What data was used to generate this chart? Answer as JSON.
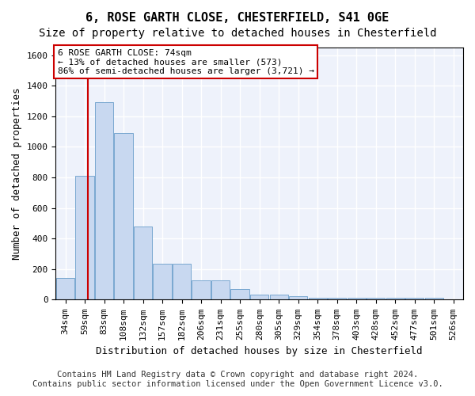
{
  "title_line1": "6, ROSE GARTH CLOSE, CHESTERFIELD, S41 0GE",
  "title_line2": "Size of property relative to detached houses in Chesterfield",
  "xlabel": "Distribution of detached houses by size in Chesterfield",
  "ylabel": "Number of detached properties",
  "bin_labels": [
    "34sqm",
    "59sqm",
    "83sqm",
    "108sqm",
    "132sqm",
    "157sqm",
    "182sqm",
    "206sqm",
    "231sqm",
    "255sqm",
    "280sqm",
    "305sqm",
    "329sqm",
    "354sqm",
    "378sqm",
    "403sqm",
    "428sqm",
    "452sqm",
    "477sqm",
    "501sqm",
    "526sqm"
  ],
  "bar_heights": [
    140,
    810,
    1290,
    1090,
    480,
    235,
    235,
    125,
    125,
    70,
    35,
    35,
    25,
    15,
    15,
    15,
    15,
    15,
    15,
    15,
    0
  ],
  "bar_color": "#c8d8f0",
  "bar_edge_color": "#7aa8d0",
  "vline_x": 1.15,
  "vline_color": "#cc0000",
  "property_size": "74sqm",
  "annotation_line1": "6 ROSE GARTH CLOSE: 74sqm",
  "annotation_line2": "← 13% of detached houses are smaller (573)",
  "annotation_line3": "86% of semi-detached houses are larger (3,721) →",
  "annotation_box_color": "#ffffff",
  "annotation_box_edge_color": "#cc0000",
  "ylim": [
    0,
    1650
  ],
  "yticks": [
    0,
    200,
    400,
    600,
    800,
    1000,
    1200,
    1400,
    1600
  ],
  "footer_line1": "Contains HM Land Registry data © Crown copyright and database right 2024.",
  "footer_line2": "Contains public sector information licensed under the Open Government Licence v3.0.",
  "bg_color": "#eef2fb",
  "grid_color": "#ffffff",
  "title_fontsize": 11,
  "subtitle_fontsize": 10,
  "axis_label_fontsize": 9,
  "tick_fontsize": 8,
  "annotation_fontsize": 8,
  "footer_fontsize": 7.5
}
